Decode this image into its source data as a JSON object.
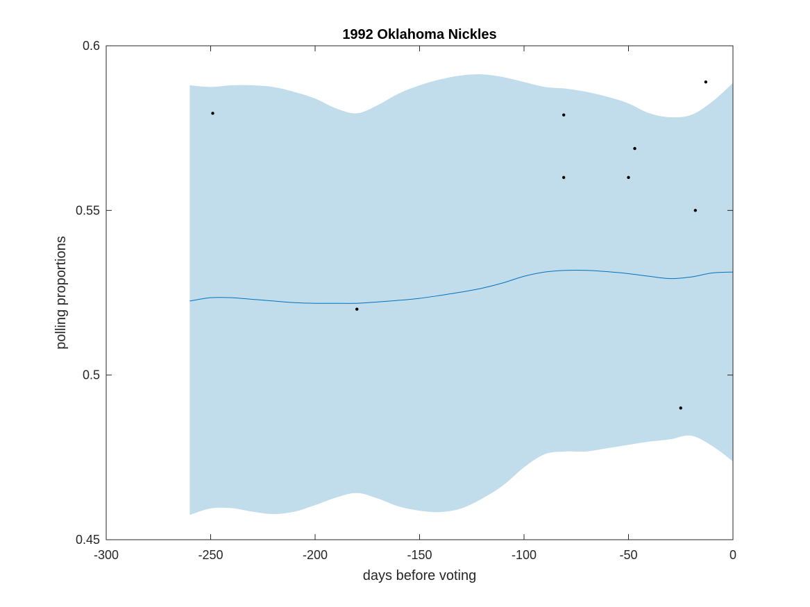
{
  "chart_data": {
    "type": "line",
    "title": "1992 Oklahoma Nickles",
    "xlabel": "days before voting",
    "ylabel": "polling proportions",
    "xlim": [
      -300,
      0
    ],
    "ylim": [
      0.45,
      0.6
    ],
    "x_ticks": [
      -300,
      -250,
      -200,
      -150,
      -100,
      -50,
      0
    ],
    "x_tick_labels": [
      "-300",
      "-250",
      "-200",
      "-150",
      "-100",
      "-50",
      "0"
    ],
    "y_ticks": [
      0.45,
      0.5,
      0.55,
      0.6
    ],
    "y_tick_labels": [
      "0.45",
      "0.5",
      "0.55",
      "0.6"
    ],
    "grid": false,
    "colors": {
      "band": "#c1dcea",
      "line": "#0072bd",
      "points": "#000000",
      "axes": "#262626"
    },
    "series": [
      {
        "type": "area-band",
        "x": [
          -260,
          -250,
          -240,
          -230,
          -220,
          -210,
          -200,
          -190,
          -180,
          -170,
          -160,
          -150,
          -140,
          -130,
          -120,
          -110,
          -100,
          -90,
          -80,
          -70,
          -60,
          -50,
          -40,
          -30,
          -20,
          -10,
          0
        ],
        "upper": [
          0.588,
          0.5875,
          0.588,
          0.588,
          0.5875,
          0.586,
          0.584,
          0.581,
          0.5795,
          0.582,
          0.5855,
          0.588,
          0.5898,
          0.591,
          0.5913,
          0.5905,
          0.589,
          0.5875,
          0.587,
          0.586,
          0.5845,
          0.5825,
          0.5795,
          0.5783,
          0.579,
          0.583,
          0.5887
        ],
        "lower": [
          0.4575,
          0.4595,
          0.4596,
          0.4585,
          0.4578,
          0.4585,
          0.4605,
          0.4628,
          0.4642,
          0.4625,
          0.4601,
          0.4588,
          0.4584,
          0.4595,
          0.4625,
          0.4665,
          0.472,
          0.476,
          0.4768,
          0.4768,
          0.4778,
          0.4788,
          0.4798,
          0.4805,
          0.4816,
          0.4785,
          0.4738
        ]
      },
      {
        "type": "line",
        "x": [
          -260,
          -250,
          -240,
          -230,
          -220,
          -210,
          -200,
          -190,
          -180,
          -170,
          -160,
          -150,
          -140,
          -130,
          -120,
          -110,
          -100,
          -90,
          -80,
          -70,
          -60,
          -50,
          -40,
          -30,
          -20,
          -10,
          0
        ],
        "y": [
          0.5225,
          0.5235,
          0.5235,
          0.523,
          0.5225,
          0.522,
          0.5218,
          0.5218,
          0.5218,
          0.5222,
          0.5227,
          0.5233,
          0.5242,
          0.5252,
          0.5264,
          0.528,
          0.53,
          0.5313,
          0.5318,
          0.5318,
          0.5314,
          0.5308,
          0.53,
          0.5293,
          0.5298,
          0.531,
          0.5313
        ]
      },
      {
        "type": "scatter",
        "x": [
          -249,
          -180,
          -81,
          -81,
          -50,
          -47,
          -25,
          -18,
          -13
        ],
        "y": [
          0.5795,
          0.52,
          0.579,
          0.56,
          0.56,
          0.5688,
          0.49,
          0.55,
          0.589
        ]
      }
    ]
  }
}
